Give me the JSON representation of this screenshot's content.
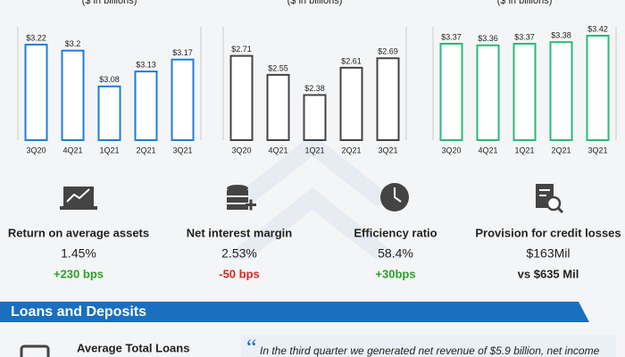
{
  "chart_data": [
    {
      "type": "bar",
      "subtitle": "($ in billions)",
      "categories": [
        "3Q20",
        "4Q21",
        "1Q21",
        "2Q21",
        "3Q21"
      ],
      "values": [
        3.22,
        3.2,
        3.08,
        3.13,
        3.17
      ],
      "value_labels": [
        "$3.22",
        "$3.2",
        "$3.08",
        "$3.13",
        "$3.17"
      ],
      "color": "#1e7fd6",
      "ylim": [
        2.9,
        3.25
      ]
    },
    {
      "type": "bar",
      "subtitle": "($ in billions)",
      "categories": [
        "3Q20",
        "4Q21",
        "1Q21",
        "2Q21",
        "3Q21"
      ],
      "values": [
        2.71,
        2.55,
        2.38,
        2.61,
        2.69
      ],
      "value_labels": [
        "$2.71",
        "$2.55",
        "$2.38",
        "$2.61",
        "$2.69"
      ],
      "color": "#444444",
      "ylim": [
        2.0,
        2.88
      ]
    },
    {
      "type": "bar",
      "subtitle": "($ in billions)",
      "categories": [
        "3Q20",
        "4Q21",
        "1Q21",
        "2Q21",
        "3Q21"
      ],
      "values": [
        3.37,
        3.36,
        3.37,
        3.38,
        3.42
      ],
      "value_labels": [
        "$3.37",
        "$3.36",
        "$3.37",
        "$3.38",
        "$3.42"
      ],
      "color": "#2eb87a",
      "ylim": [
        2.77,
        3.42
      ]
    }
  ],
  "metrics": [
    {
      "label": "Return on average assets",
      "value": "1.45%",
      "change": "+230 bps",
      "change_color": "#2ca02c"
    },
    {
      "label": "Net interest margin",
      "value": "2.53%",
      "change": "-50 bps",
      "change_color": "#d62728"
    },
    {
      "label": "Efficiency ratio",
      "value": "58.4%",
      "change": "+30bps",
      "change_color": "#2ca02c"
    },
    {
      "label": "Provision for credit losses",
      "value": "$163Mil",
      "change": "vs $635 Mil",
      "change_color": "#222222"
    }
  ],
  "section": {
    "title": "Loans and Deposits",
    "item": "Average Total Loans",
    "quote_mark": "“",
    "quote": "In the third quarter we generated net revenue of $5.9 billion, net income"
  }
}
